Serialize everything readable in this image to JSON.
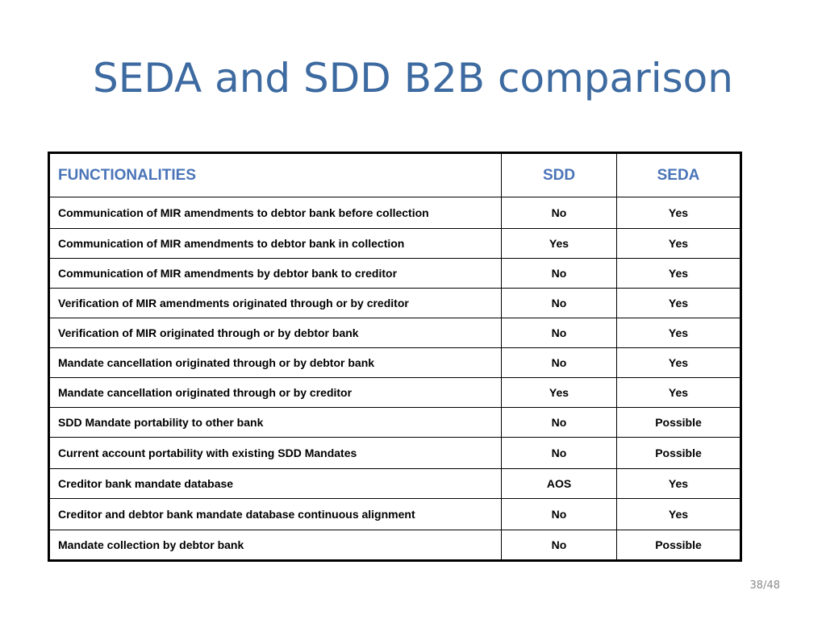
{
  "slide": {
    "title": "SEDA and SDD B2B comparison",
    "page_number": "38/48"
  },
  "table": {
    "headers": [
      "FUNCTIONALITIES",
      "SDD",
      "SEDA"
    ],
    "rows": [
      {
        "feature": "Communication of MIR amendments to debtor bank before collection",
        "sdd": "No",
        "seda": "Yes"
      },
      {
        "feature": "Communication of MIR amendments to debtor bank in collection",
        "sdd": "Yes",
        "seda": "Yes"
      },
      {
        "feature": "Communication of MIR amendments by debtor bank to creditor",
        "sdd": "No",
        "seda": "Yes"
      },
      {
        "feature": "Verification of MIR amendments originated through or by creditor",
        "sdd": "No",
        "seda": "Yes"
      },
      {
        "feature": "Verification of MIR originated through or by debtor bank",
        "sdd": "No",
        "seda": "Yes"
      },
      {
        "feature": "Mandate cancellation originated through or by debtor bank",
        "sdd": "No",
        "seda": "Yes"
      },
      {
        "feature": "Mandate cancellation originated through or by creditor",
        "sdd": "Yes",
        "seda": "Yes"
      },
      {
        "feature": "SDD Mandate portability to other bank",
        "sdd": "No",
        "seda": "Possible"
      },
      {
        "feature": "Current account portability with existing SDD Mandates",
        "sdd": "No",
        "seda": "Possible"
      },
      {
        "feature": "Creditor bank mandate database",
        "sdd": "AOS",
        "seda": "Yes"
      },
      {
        "feature": "Creditor and debtor bank mandate database continuous alignment",
        "sdd": "No",
        "seda": "Yes"
      },
      {
        "feature": "Mandate collection by debtor bank",
        "sdd": "No",
        "seda": "Possible"
      }
    ]
  },
  "colors": {
    "title": "#3d6aa0",
    "header_text": "#4a74b8",
    "page_number": "#8c8c8c"
  }
}
